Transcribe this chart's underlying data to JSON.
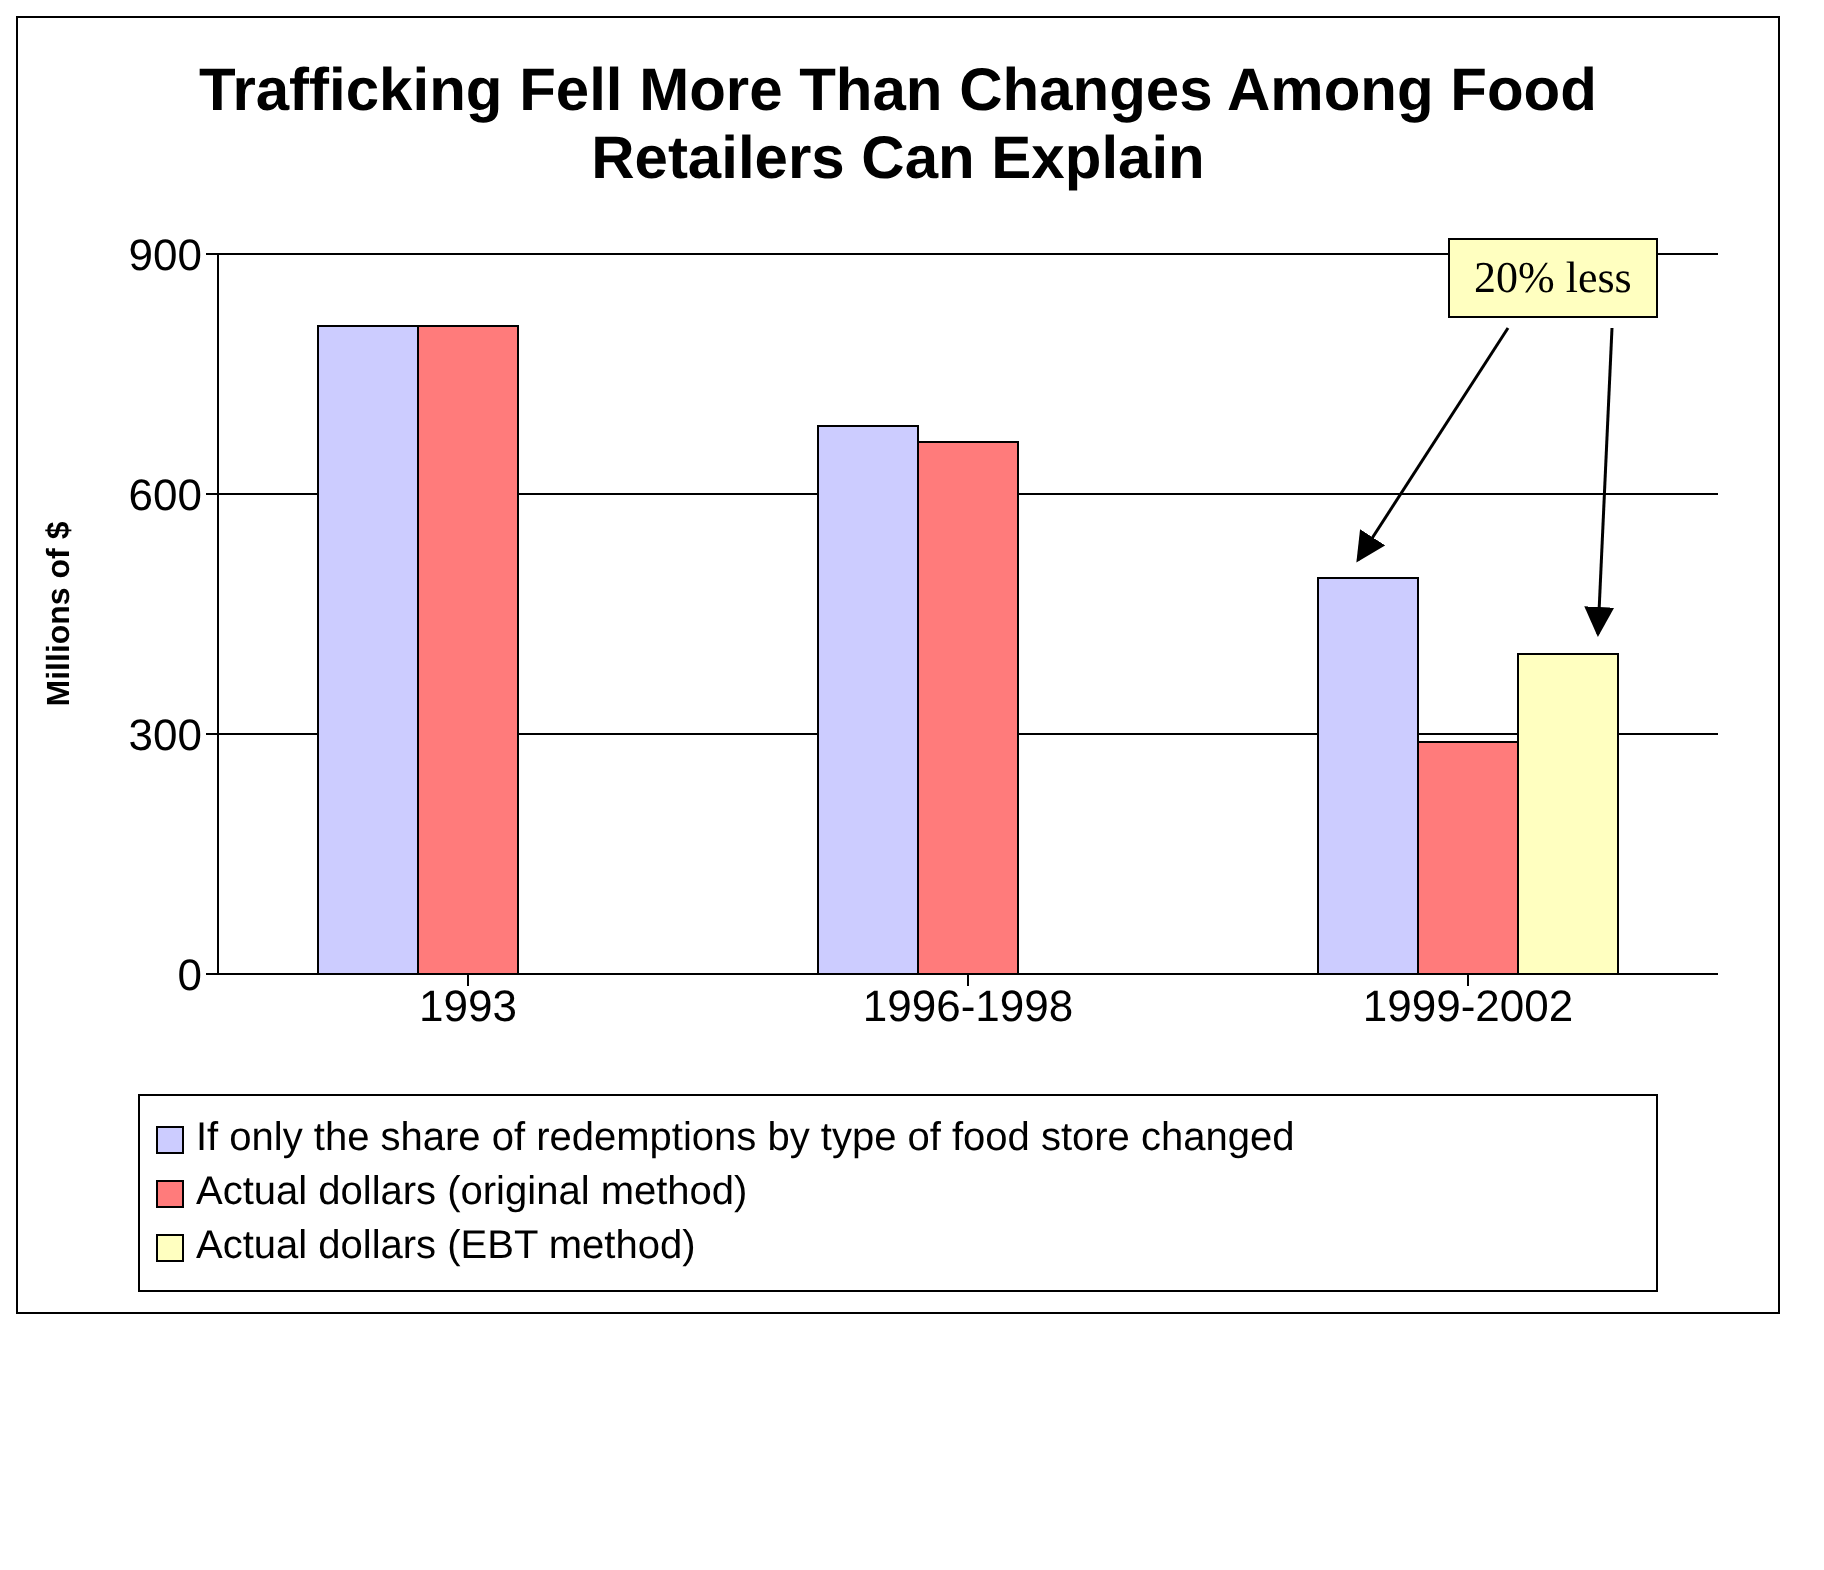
{
  "chart_data": {
    "type": "bar",
    "title": "Trafficking Fell More Than Changes Among Food Retailers Can Explain",
    "ylabel": "Millions of $",
    "categories": [
      "1993",
      "1996-1998",
      "1999-2002"
    ],
    "series": [
      {
        "name": "If only the share of redemptions by type of food store changed",
        "color": "#ccccff",
        "values": [
          810,
          685,
          495
        ]
      },
      {
        "name": "Actual dollars (original method)",
        "color": "#ff7b7b",
        "values": [
          810,
          665,
          290
        ]
      },
      {
        "name": "Actual dollars (EBT method)",
        "color": "#ffffc0",
        "values": [
          null,
          null,
          400
        ]
      }
    ],
    "ylim": [
      0,
      900
    ],
    "yticks": [
      0,
      300,
      600,
      900
    ],
    "grid": "y",
    "legend": "bottom",
    "annotations": [
      "20% less"
    ]
  }
}
